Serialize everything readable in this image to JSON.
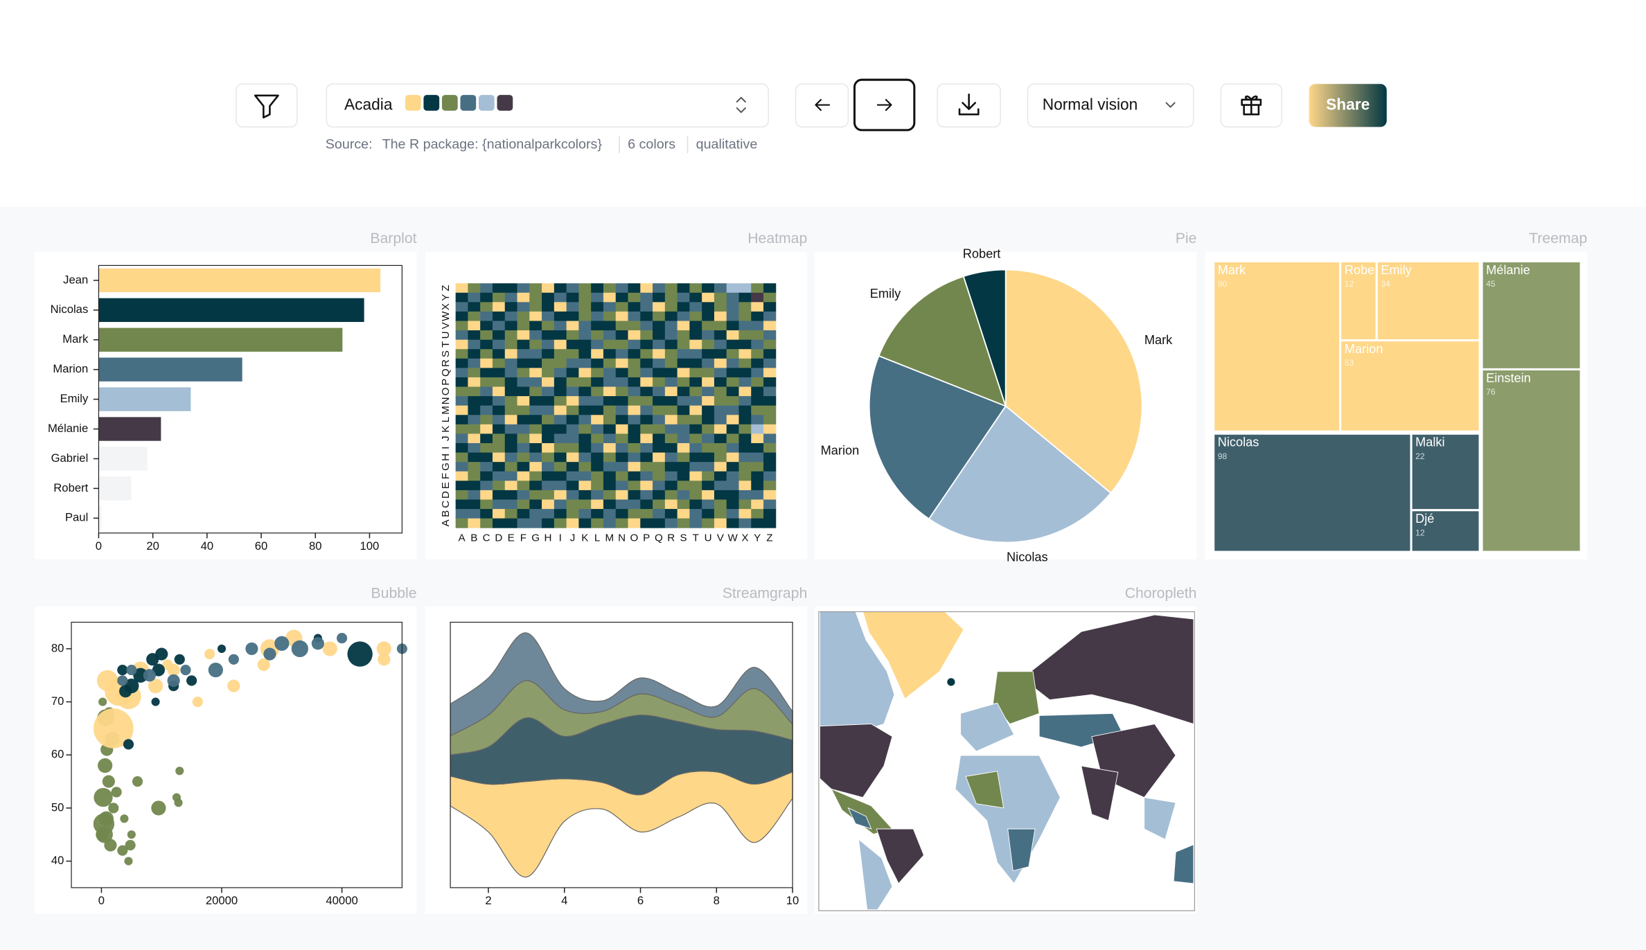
{
  "toolbar": {
    "palette": "Acadia",
    "palette_colors": [
      "#FED789",
      "#023743",
      "#72874E",
      "#476F84",
      "#A4BED5",
      "#453947"
    ],
    "source_label": "Source:",
    "source": "The R package: {nationalparkcolors}",
    "count": "6 colors",
    "kind": "qualitative",
    "vision": "Normal vision",
    "share": "Share"
  },
  "chart_data": [
    {
      "type": "bar",
      "title": "Barplot",
      "categories": [
        "Jean",
        "Nicolas",
        "Mark",
        "Marion",
        "Emily",
        "Mélanie",
        "Gabriel",
        "Robert",
        "Paul"
      ],
      "values": [
        104,
        98,
        90,
        53,
        34,
        23,
        18,
        12,
        1
      ],
      "colors": [
        "#FED789",
        "#023743",
        "#72874E",
        "#476F84",
        "#A4BED5",
        "#453947",
        "#f3f4f6",
        "#f3f4f6",
        "#f3f4f6"
      ],
      "xlim": [
        0,
        112
      ],
      "xticks": [
        0,
        20,
        40,
        60,
        80,
        100
      ]
    },
    {
      "type": "heatmap",
      "title": "Heatmap",
      "xcategories": [
        "A",
        "B",
        "C",
        "D",
        "E",
        "F",
        "G",
        "H",
        "I",
        "J",
        "K",
        "L",
        "M",
        "N",
        "O",
        "P",
        "Q",
        "R",
        "S",
        "T",
        "U",
        "V",
        "W",
        "X",
        "Y",
        "Z"
      ],
      "ycategories": [
        "Z",
        "Y",
        "X",
        "W",
        "V",
        "U",
        "T",
        "S",
        "R",
        "Q",
        "P",
        "O",
        "N",
        "M",
        "L",
        "K",
        "J",
        "I",
        "H",
        "G",
        "F",
        "E",
        "D",
        "C",
        "B",
        "A"
      ],
      "zlim": [
        0,
        9
      ],
      "colors": [
        "#FED789",
        "#023743",
        "#72874E",
        "#476F84",
        "#A4BED5",
        "#453947"
      ],
      "values": [
        [
          0,
          3,
          5,
          2,
          1,
          6,
          3,
          0,
          2,
          5,
          4,
          1,
          3,
          6,
          2,
          0,
          5,
          3,
          1,
          4,
          2,
          6,
          7,
          8,
          4,
          2
        ],
        [
          2,
          5,
          1,
          3,
          6,
          0,
          4,
          2,
          5,
          1,
          3,
          6,
          0,
          2,
          4,
          5,
          1,
          3,
          6,
          2,
          0,
          4,
          5,
          1,
          9,
          3
        ],
        [
          5,
          1,
          3,
          0,
          2,
          6,
          4,
          1,
          0,
          5,
          3,
          2,
          6,
          4,
          1,
          5,
          0,
          3,
          2,
          6,
          1,
          4,
          5,
          3,
          0,
          2
        ],
        [
          1,
          4,
          6,
          2,
          5,
          3,
          0,
          6,
          2,
          1,
          4,
          5,
          3,
          0,
          6,
          2,
          4,
          1,
          5,
          3,
          2,
          0,
          6,
          4,
          1,
          5
        ],
        [
          3,
          0,
          2,
          5,
          1,
          4,
          2,
          3,
          6,
          0,
          5,
          1,
          2,
          4,
          3,
          6,
          1,
          5,
          0,
          2,
          4,
          3,
          1,
          6,
          5,
          0
        ],
        [
          6,
          2,
          4,
          1,
          3,
          0,
          5,
          2,
          1,
          4,
          6,
          3,
          5,
          1,
          0,
          4,
          2,
          6,
          3,
          1,
          5,
          2,
          0,
          3,
          4,
          6
        ],
        [
          0,
          5,
          1,
          6,
          4,
          2,
          3,
          5,
          0,
          2,
          1,
          6,
          4,
          3,
          5,
          1,
          6,
          2,
          4,
          0,
          3,
          5,
          2,
          1,
          6,
          3
        ],
        [
          4,
          1,
          3,
          2,
          0,
          5,
          6,
          1,
          4,
          3,
          2,
          0,
          1,
          5,
          2,
          3,
          0,
          4,
          6,
          5,
          1,
          2,
          4,
          0,
          3,
          1
        ],
        [
          2,
          6,
          0,
          4,
          5,
          1,
          2,
          4,
          3,
          6,
          5,
          2,
          3,
          0,
          4,
          1,
          5,
          3,
          2,
          1,
          6,
          0,
          5,
          4,
          2,
          5
        ],
        [
          5,
          3,
          2,
          1,
          6,
          4,
          0,
          3,
          5,
          1,
          0,
          4,
          6,
          2,
          3,
          5,
          2,
          1,
          0,
          4,
          3,
          6,
          1,
          2,
          5,
          0
        ],
        [
          1,
          0,
          4,
          3,
          2,
          6,
          5,
          0,
          2,
          4,
          3,
          1,
          5,
          6,
          1,
          0,
          4,
          5,
          3,
          2,
          0,
          1,
          3,
          6,
          4,
          2
        ],
        [
          3,
          4,
          6,
          0,
          1,
          2,
          4,
          6,
          1,
          5,
          2,
          3,
          0,
          4,
          5,
          2,
          6,
          0,
          1,
          3,
          5,
          4,
          2,
          0,
          1,
          6
        ],
        [
          6,
          2,
          1,
          5,
          3,
          0,
          1,
          2,
          4,
          0,
          6,
          5,
          2,
          1,
          3,
          4,
          1,
          2,
          5,
          6,
          0,
          3,
          4,
          5,
          2,
          1
        ],
        [
          0,
          1,
          5,
          2,
          4,
          3,
          6,
          5,
          0,
          3,
          1,
          2,
          4,
          5,
          0,
          6,
          3,
          4,
          2,
          0,
          1,
          5,
          6,
          2,
          3,
          4
        ],
        [
          2,
          5,
          3,
          6,
          0,
          1,
          2,
          4,
          6,
          2,
          5,
          0,
          3,
          2,
          6,
          1,
          5,
          0,
          4,
          3,
          2,
          6,
          0,
          1,
          5,
          3
        ],
        [
          4,
          3,
          0,
          1,
          5,
          6,
          3,
          1,
          2,
          5,
          4,
          6,
          1,
          0,
          2,
          3,
          4,
          6,
          5,
          1,
          3,
          0,
          2,
          4,
          8,
          0
        ],
        [
          5,
          0,
          2,
          4,
          1,
          3,
          0,
          2,
          5,
          6,
          1,
          3,
          5,
          4,
          1,
          0,
          2,
          3,
          6,
          4,
          5,
          1,
          3,
          2,
          0,
          6
        ],
        [
          1,
          6,
          4,
          3,
          2,
          5,
          1,
          0,
          3,
          4,
          2,
          5,
          0,
          6,
          3,
          5,
          1,
          2,
          0,
          6,
          4,
          3,
          5,
          1,
          2,
          4
        ],
        [
          3,
          2,
          1,
          0,
          6,
          4,
          5,
          3,
          1,
          0,
          6,
          2,
          4,
          1,
          5,
          2,
          0,
          6,
          3,
          1,
          2,
          4,
          0,
          5,
          6,
          1
        ],
        [
          6,
          4,
          5,
          2,
          3,
          1,
          0,
          6,
          4,
          2,
          3,
          1,
          6,
          5,
          0,
          4,
          3,
          1,
          2,
          5,
          6,
          0,
          1,
          3,
          4,
          2
        ],
        [
          0,
          3,
          2,
          6,
          5,
          0,
          4,
          1,
          2,
          6,
          5,
          4,
          1,
          3,
          2,
          6,
          4,
          5,
          1,
          0,
          3,
          2,
          6,
          4,
          1,
          5
        ],
        [
          2,
          1,
          6,
          4,
          0,
          3,
          2,
          5,
          6,
          1,
          0,
          3,
          2,
          6,
          4,
          0,
          5,
          2,
          3,
          4,
          1,
          6,
          5,
          0,
          2,
          3
        ],
        [
          4,
          5,
          0,
          1,
          2,
          6,
          3,
          4,
          0,
          5,
          2,
          6,
          3,
          0,
          1,
          5,
          2,
          4,
          6,
          3,
          0,
          1,
          2,
          6,
          5,
          0
        ],
        [
          1,
          2,
          3,
          5,
          6,
          4,
          1,
          0,
          5,
          3,
          4,
          0,
          2,
          5,
          6,
          1,
          3,
          0,
          4,
          2,
          5,
          3,
          1,
          4,
          0,
          6
        ],
        [
          5,
          6,
          1,
          0,
          3,
          2,
          5,
          6,
          1,
          4,
          6,
          1,
          5,
          2,
          4,
          3,
          6,
          1,
          0,
          5,
          2,
          4,
          6,
          0,
          3,
          1
        ],
        [
          3,
          0,
          4,
          2,
          1,
          5,
          6,
          2,
          3,
          0,
          1,
          4,
          6,
          3,
          0,
          2,
          1,
          5,
          3,
          6,
          4,
          0,
          2,
          5,
          1,
          2
        ]
      ]
    },
    {
      "type": "pie",
      "title": "Pie",
      "categories": [
        "Mark",
        "Nicolas",
        "Marion",
        "Emily",
        "Robert"
      ],
      "values": [
        36,
        23.5,
        21.5,
        14,
        5
      ],
      "colors": [
        "#FED789",
        "#A4BED5",
        "#476F84",
        "#72874E",
        "#023743"
      ]
    },
    {
      "type": "treemap",
      "title": "Treemap",
      "groups": [
        {
          "color": "#FED789",
          "items": [
            {
              "name": "Mark",
              "value": 90
            },
            {
              "name": "Robert",
              "value": 12
            },
            {
              "name": "Emily",
              "value": 34
            },
            {
              "name": "Marion",
              "value": 53
            }
          ]
        },
        {
          "color": "#3F5F6B",
          "items": [
            {
              "name": "Nicolas",
              "value": 98
            },
            {
              "name": "Malki",
              "value": 22
            },
            {
              "name": "Djé",
              "value": 12
            }
          ]
        },
        {
          "color": "#8C9C6B",
          "items": [
            {
              "name": "Mélanie",
              "value": 45
            },
            {
              "name": "Einstein",
              "value": 76
            }
          ]
        }
      ]
    },
    {
      "type": "scatter",
      "title": "Bubble",
      "xlim": [
        -5000,
        50000
      ],
      "ylim": [
        35,
        85
      ],
      "xticks": [
        0,
        20000,
        40000
      ],
      "yticks": [
        40,
        50,
        60,
        70,
        80
      ],
      "series": [
        {
          "color": "#72874E",
          "x": [
            500,
            800,
            300,
            1200,
            600,
            1500,
            2000,
            400,
            900,
            1800,
            700,
            3500,
            4500,
            4800,
            13000,
            9500,
            12500,
            12800,
            1300,
            6000,
            2500,
            100,
            200,
            5000,
            3800
          ],
          "values": [
            45,
            48,
            52,
            55,
            58,
            43,
            50,
            47,
            61,
            63,
            67,
            42,
            40,
            43,
            57,
            50,
            52,
            51,
            68,
            55,
            53,
            45,
            70,
            45,
            48
          ],
          "sizes": [
            8,
            7,
            9,
            6,
            7,
            6,
            5,
            10,
            6,
            7,
            8,
            5,
            4,
            5,
            4,
            7,
            4,
            4,
            5,
            5,
            5,
            6,
            4,
            4,
            4
          ]
        },
        {
          "color": "#FED789",
          "x": [
            2000,
            3000,
            1000,
            4500,
            6500,
            9000,
            12000,
            16000,
            22000,
            28000,
            32000,
            38000,
            47000,
            47000,
            18000,
            27000,
            11000
          ],
          "values": [
            65,
            72,
            74,
            71,
            76,
            73,
            76,
            70,
            73,
            80,
            82,
            80,
            80,
            78,
            79,
            77,
            77
          ],
          "sizes": [
            19,
            14,
            10,
            12,
            8,
            7,
            6,
            5,
            6,
            9,
            8,
            7,
            7,
            6,
            5,
            6,
            5
          ]
        },
        {
          "color": "#023743",
          "x": [
            4000,
            5000,
            6500,
            8500,
            10000,
            13000,
            15000,
            43000,
            3500,
            9500,
            12000,
            20000,
            36000,
            4500,
            9000
          ],
          "values": [
            72,
            73,
            75,
            78,
            79,
            78,
            74,
            79,
            76,
            76,
            73,
            80,
            82,
            62,
            70
          ],
          "sizes": [
            6,
            7,
            7,
            6,
            6,
            5,
            5,
            12,
            5,
            6,
            5,
            4,
            4,
            5,
            4
          ]
        },
        {
          "color": "#476F84",
          "x": [
            8000,
            12000,
            14000,
            19000,
            25000,
            30000,
            33000,
            36000,
            40000,
            50000,
            28000,
            22000,
            5000,
            3500
          ],
          "values": [
            75,
            74,
            76,
            76,
            80,
            81,
            80,
            81,
            82,
            80,
            79,
            78,
            76,
            74
          ],
          "sizes": [
            6,
            6,
            5,
            7,
            6,
            7,
            8,
            6,
            5,
            5,
            6,
            5,
            5,
            5
          ]
        }
      ]
    },
    {
      "type": "stream",
      "title": "Streamgraph",
      "x": [
        1,
        2,
        3,
        4,
        5,
        6,
        7,
        8,
        9,
        10
      ],
      "xlim": [
        1,
        10
      ],
      "xticks": [
        2,
        4,
        6,
        8,
        10
      ],
      "series": [
        {
          "color": "#FED789",
          "values": [
            28,
            45,
            90,
            40,
            25,
            35,
            40,
            30,
            55,
            25
          ]
        },
        {
          "color": "#3F5F6B",
          "values": [
            20,
            35,
            60,
            40,
            55,
            75,
            50,
            40,
            50,
            30
          ]
        },
        {
          "color": "#8C9C6B",
          "values": [
            18,
            30,
            35,
            25,
            12,
            20,
            15,
            12,
            40,
            15
          ]
        },
        {
          "color": "#6F8899",
          "values": [
            30,
            35,
            45,
            20,
            10,
            15,
            12,
            10,
            20,
            12
          ]
        }
      ]
    },
    {
      "type": "choropleth",
      "title": "Choropleth"
    }
  ]
}
